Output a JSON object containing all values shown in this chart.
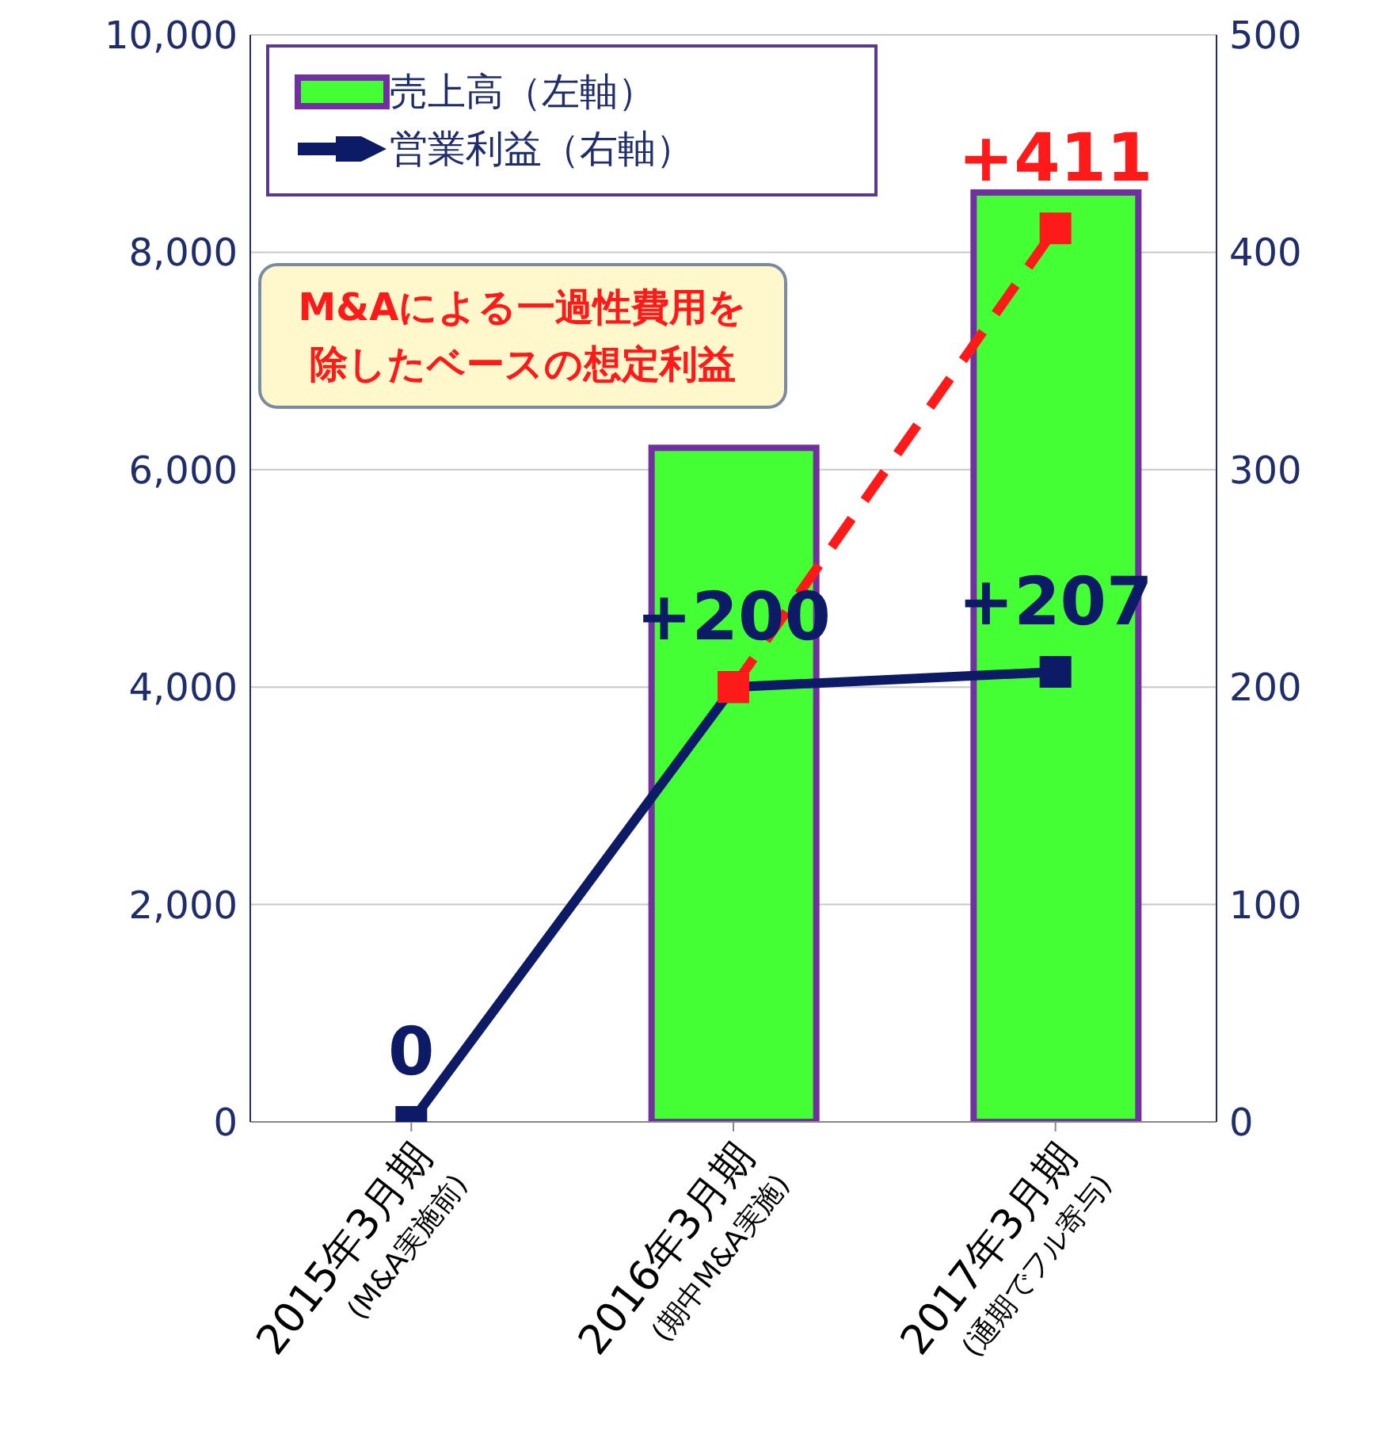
{
  "chart_data": {
    "type": "bar",
    "categories": [
      "2015年3月期\n(M&A実施前)",
      "2016年3月期\n(期中M&A実施)",
      "2017年3月期\n(通期でフル寄与)"
    ],
    "series": [
      {
        "name": "売上高（左軸）",
        "color": "#44ff33",
        "values": [
          null,
          6200,
          8550
        ]
      },
      {
        "name": "営業利益（右軸）",
        "type": "line",
        "axis": "y2",
        "color": "#0d1a66",
        "values": [
          0,
          200,
          207
        ],
        "value_labels": [
          "0",
          "+200",
          "+207"
        ]
      },
      {
        "type": "line",
        "axis": "y2",
        "color": "#ff1a1a",
        "values": [
          null,
          200,
          411
        ],
        "value_labels": [
          null,
          null,
          "+411"
        ],
        "line_style": "dashed"
      }
    ],
    "ylim": [
      0,
      10000
    ],
    "yticks": [
      0,
      {
        "value": 2000,
        "label": "2,000"
      },
      {
        "value": 4000,
        "label": "4,000"
      },
      {
        "value": 6000,
        "label": "6,000"
      },
      {
        "value": 8000,
        "label": "8,000"
      },
      {
        "value": 10000,
        "label": "10,000"
      }
    ],
    "y2lim": [
      0,
      500
    ],
    "y2ticks": [
      0,
      100,
      200,
      300,
      400,
      500
    ],
    "grid": "y",
    "legend": "top left",
    "marker": "square",
    "annotations": [
      "M&Aによる一過性費用を除したベースの想定利益"
    ]
  }
}
